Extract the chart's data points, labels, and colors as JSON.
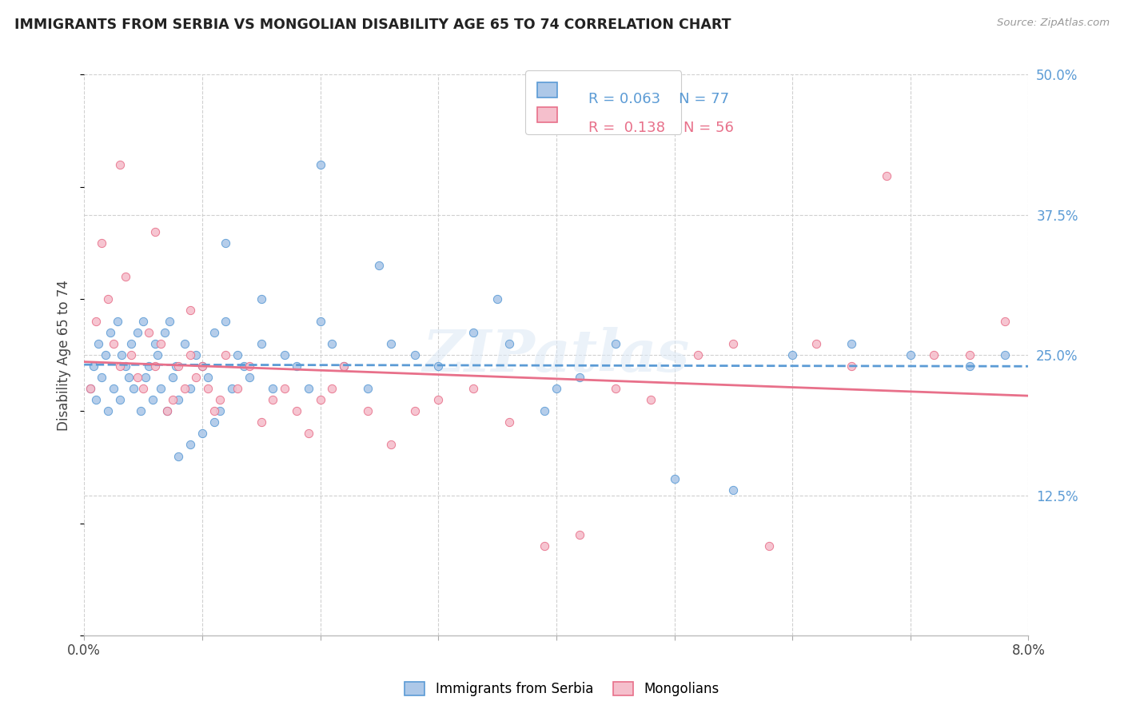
{
  "title": "IMMIGRANTS FROM SERBIA VS MONGOLIAN DISABILITY AGE 65 TO 74 CORRELATION CHART",
  "source": "Source: ZipAtlas.com",
  "ylabel": "Disability Age 65 to 74",
  "xlim": [
    0.0,
    8.0
  ],
  "ylim": [
    0.0,
    50.0
  ],
  "yticks_right": [
    12.5,
    25.0,
    37.5,
    50.0
  ],
  "yticklabels_right": [
    "12.5%",
    "25.0%",
    "37.5%",
    "50.0%"
  ],
  "series1_color": "#adc8e8",
  "series1_edge": "#5b9bd5",
  "series2_color": "#f5bfcc",
  "series2_edge": "#e8708a",
  "series1_label": "Immigrants from Serbia",
  "series2_label": "Mongolians",
  "series1_R": "0.063",
  "series1_N": "77",
  "series2_R": "0.138",
  "series2_N": "56",
  "line1_color": "#5b9bd5",
  "line2_color": "#e8708a",
  "background_color": "#ffffff",
  "grid_color": "#d0d0d0",
  "watermark": "ZIPatlas",
  "series1_x": [
    0.05,
    0.08,
    0.1,
    0.12,
    0.15,
    0.18,
    0.2,
    0.22,
    0.25,
    0.28,
    0.3,
    0.32,
    0.35,
    0.38,
    0.4,
    0.42,
    0.45,
    0.48,
    0.5,
    0.52,
    0.55,
    0.58,
    0.6,
    0.62,
    0.65,
    0.68,
    0.7,
    0.72,
    0.75,
    0.78,
    0.8,
    0.85,
    0.9,
    0.95,
    1.0,
    1.05,
    1.1,
    1.15,
    1.2,
    1.25,
    1.3,
    1.35,
    1.4,
    1.5,
    1.6,
    1.7,
    1.8,
    1.9,
    2.0,
    2.1,
    2.2,
    2.4,
    2.6,
    2.8,
    3.0,
    3.3,
    3.6,
    3.9,
    4.2,
    4.5,
    1.2,
    1.5,
    2.0,
    2.5,
    3.5,
    4.0,
    5.0,
    5.5,
    6.0,
    6.5,
    7.0,
    7.5,
    7.8,
    1.1,
    0.9,
    1.0,
    0.8
  ],
  "series1_y": [
    22,
    24,
    21,
    26,
    23,
    25,
    20,
    27,
    22,
    28,
    21,
    25,
    24,
    23,
    26,
    22,
    27,
    20,
    28,
    23,
    24,
    21,
    26,
    25,
    22,
    27,
    20,
    28,
    23,
    24,
    21,
    26,
    22,
    25,
    24,
    23,
    27,
    20,
    28,
    22,
    25,
    24,
    23,
    26,
    22,
    25,
    24,
    22,
    28,
    26,
    24,
    22,
    26,
    25,
    24,
    27,
    26,
    20,
    23,
    26,
    35,
    30,
    42,
    33,
    30,
    22,
    14,
    13,
    25,
    26,
    25,
    24,
    25,
    19,
    17,
    18,
    16
  ],
  "series2_x": [
    0.05,
    0.1,
    0.15,
    0.2,
    0.25,
    0.3,
    0.35,
    0.4,
    0.45,
    0.5,
    0.55,
    0.6,
    0.65,
    0.7,
    0.75,
    0.8,
    0.85,
    0.9,
    0.95,
    1.0,
    1.05,
    1.1,
    1.15,
    1.2,
    1.3,
    1.4,
    1.5,
    1.6,
    1.7,
    1.8,
    1.9,
    2.0,
    2.1,
    2.2,
    2.4,
    2.6,
    2.8,
    3.0,
    3.3,
    3.6,
    3.9,
    4.2,
    4.5,
    4.8,
    5.2,
    5.5,
    5.8,
    6.2,
    6.5,
    6.8,
    7.2,
    7.5,
    7.8,
    0.3,
    0.6,
    0.9
  ],
  "series2_y": [
    22,
    28,
    35,
    30,
    26,
    24,
    32,
    25,
    23,
    22,
    27,
    24,
    26,
    20,
    21,
    24,
    22,
    25,
    23,
    24,
    22,
    20,
    21,
    25,
    22,
    24,
    19,
    21,
    22,
    20,
    18,
    21,
    22,
    24,
    20,
    17,
    20,
    21,
    22,
    19,
    8,
    9,
    22,
    21,
    25,
    26,
    8,
    26,
    24,
    41,
    25,
    25,
    28,
    42,
    36,
    29
  ]
}
